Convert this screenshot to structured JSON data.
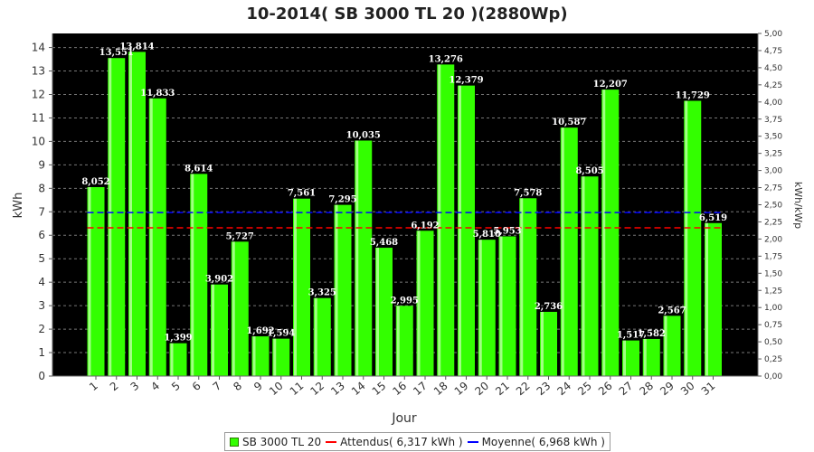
{
  "chart_data": {
    "type": "bar",
    "title": "10-2014( SB 3000 TL 20 )(2880Wp)",
    "xlabel": "Jour",
    "ylabel": "kWh",
    "y2label": "kWh/kWp",
    "ylim": [
      0,
      14.6
    ],
    "y2lim": [
      0,
      5.0
    ],
    "yticks": [
      0,
      1,
      2,
      3,
      4,
      5,
      6,
      7,
      8,
      9,
      10,
      11,
      12,
      13,
      14
    ],
    "y2ticks": [
      "0,00",
      "0,25",
      "0,50",
      "0,75",
      "1,00",
      "1,25",
      "1,50",
      "1,75",
      "2,00",
      "2,25",
      "2,50",
      "2,75",
      "3,00",
      "3,25",
      "3,50",
      "3,75",
      "4,00",
      "4,25",
      "4,50",
      "4,75",
      "5,00"
    ],
    "grid": true,
    "plot_background": "#000000",
    "bar_color": "#33ff00",
    "categories": [
      "1",
      "2",
      "3",
      "4",
      "5",
      "6",
      "7",
      "8",
      "9",
      "10",
      "11",
      "12",
      "13",
      "14",
      "15",
      "16",
      "17",
      "18",
      "19",
      "20",
      "21",
      "22",
      "23",
      "24",
      "25",
      "26",
      "27",
      "28",
      "29",
      "30",
      "31"
    ],
    "series": [
      {
        "name": "SB 3000 TL 20",
        "values": [
          8.052,
          13.551,
          13.814,
          11.833,
          1.399,
          8.614,
          3.902,
          5.727,
          1.692,
          1.594,
          7.561,
          3.325,
          7.295,
          10.035,
          5.468,
          2.995,
          6.192,
          13.276,
          12.379,
          5.81,
          5.953,
          7.578,
          2.736,
          10.587,
          8.505,
          12.207,
          1.517,
          1.582,
          2.567,
          11.729,
          6.519
        ],
        "labels": [
          "8,052",
          "13,551",
          "13,814",
          "11,833",
          "1,399",
          "8,614",
          "3,902",
          "5,727",
          "1,692",
          "1,594",
          "7,561",
          "3,325",
          "7,295",
          "10,035",
          "5,468",
          "2,995",
          "6,192",
          "13,276",
          "12,379",
          "5,810",
          "5,953",
          "7,578",
          "2,736",
          "10,587",
          "8,505",
          "12,207",
          "1,517",
          "1,582",
          "2,567",
          "11,729",
          "6,519"
        ]
      }
    ],
    "reference_lines": [
      {
        "name": "Attendus",
        "value": 6.317,
        "color": "#ff0000"
      },
      {
        "name": "Moyenne",
        "value": 6.968,
        "color": "#0000ff"
      }
    ]
  },
  "legend": {
    "bar_label": "SB 3000 TL 20",
    "attendus_label": "Attendus( 6,317 kWh )",
    "moyenne_label": "Moyenne( 6,968 kWh )"
  }
}
